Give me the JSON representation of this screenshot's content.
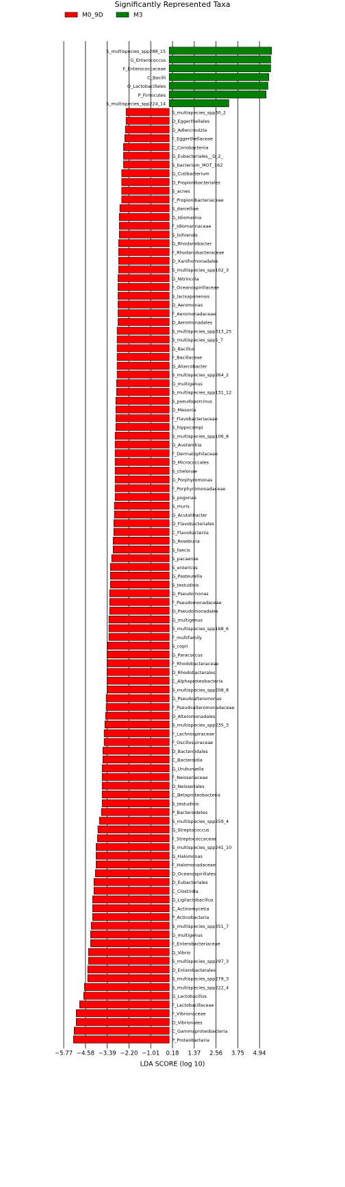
{
  "chart_data": {
    "type": "bar",
    "orientation": "horizontal",
    "title": "Significantly Represented Taxa",
    "x_label": "LDA SCORE (log 10)",
    "categories": [
      "S_multispecies_spp288_15",
      "G_Enterococcus",
      "F_Enterococcaceae",
      "C_Bacilli",
      "O_Lactobacillales",
      "P_Firmicutes",
      "S_multispecies_spp224_14",
      "S_multispecies_spp30_2",
      "O_Eggerthellales",
      "G_Adlercreutzia",
      "F_Eggerthellaceae",
      "C_Coriobacteriia",
      "G_Eubacteriales__G_2_",
      "S_bacterium_MOT_162",
      "G_Cutibacterium",
      "O_Propionibacteriales",
      "S_acnes",
      "F_Propionibacteriaceae",
      "S_danielliae",
      "G_Idiomarina",
      "F_Idiomarinaceae",
      "S_loihiensis",
      "G_Rhodanobacter",
      "F_Rhodanobacteraceae",
      "O_Xanthomonadales",
      "S_multispecies_spp102_3",
      "G_Nitrincola",
      "F_Oceanospirillaceae",
      "S_lacisaponensis",
      "G_Aeromonas",
      "F_Aeromonadaceae",
      "O_Aeromonadales",
      "S_multispecies_spp313_25",
      "S_multispecies_spp5_7",
      "G_Bacillus",
      "F_Bacillaceae",
      "G_Aliarcobacter",
      "S_multispecies_spp264_2",
      "G_multigenus",
      "S_multispecies_spp131_12",
      "S_pseudoporcinus",
      "G_Mesonia",
      "F_Flavobacteriaceae",
      "S_hippocampi",
      "S_multispecies_spp106_8",
      "G_Austwickia",
      "F_Dermatophilaceae",
      "O_Micrococcales",
      "S_chelonae",
      "G_Porphyromonas",
      "F_Porphyromonadaceae",
      "S_pogonae",
      "S_muris",
      "G_Acutalibacter",
      "O_Flavobacteriales",
      "C_Flavobacteriia",
      "G_Roseburia",
      "S_faecis",
      "S_pacaense",
      "S_entericus",
      "G_Pasteurella",
      "S_testudinis",
      "G_Pseudomonas",
      "F_Pseudomonadaceae",
      "O_Pseudomonadales",
      "G_multigenus",
      "S_multispecies_spp168_6",
      "F_multifamily",
      "S_copri",
      "G_Paracoccus",
      "F_Rhodobacteraceae",
      "O_Rhodobacterales",
      "C_Alphaproteobacteria",
      "S_multispecies_spp208_8",
      "G_Pseudoalteromonas",
      "F_Pseudoalteromonadaceae",
      "O_Alteromonadales",
      "S_multispecies_spp235_3",
      "F_Lachnospiraceae",
      "F_Oscillospiraceae",
      "O_Bacteroidales",
      "C_Bacteroidia",
      "G_Uruburuella",
      "F_Neisseriaceae",
      "O_Neisseriales",
      "C_Betaproteobacteria",
      "S_testudinis",
      "P_Bacteroidetes",
      "S_multispecies_spp259_4",
      "G_Streptococcus",
      "F_Streptococcaceae",
      "S_multispecies_spp241_10",
      "G_Halomonas",
      "F_Halomonadaceae",
      "O_Oceanospirillales",
      "O_Eubacteriales",
      "C_Clostridia",
      "G_Ligilactobacillus",
      "C_Actinomycetia",
      "P_Actinobacteria",
      "S_multispecies_spp351_7",
      "G_multigenus",
      "F_Enterobacteriaceae",
      "G_Vibrio",
      "S_multispecies_spp297_3",
      "O_Enterobacterales",
      "S_multispecies_spp279_3",
      "S_multispecies_spp222_4",
      "G_Lactobacillus",
      "F_Lactobacillaceae",
      "F_Vibrionaceae",
      "O_Vibrionales",
      "C_Gammaproteobacteria",
      "P_Proteobacteria"
    ],
    "series": [
      {
        "name": "M0_9D",
        "color": "#ff0000",
        "values": [
          null,
          null,
          null,
          null,
          null,
          null,
          null,
          -2.36,
          -2.36,
          -2.4,
          -2.43,
          -2.5,
          -2.5,
          -2.5,
          -2.6,
          -2.6,
          -2.6,
          -2.6,
          -2.7,
          -2.73,
          -2.73,
          -2.73,
          -2.77,
          -2.77,
          -2.77,
          -2.77,
          -2.8,
          -2.8,
          -2.8,
          -2.8,
          -2.8,
          -2.8,
          -2.85,
          -2.85,
          -2.85,
          -2.85,
          -2.85,
          -2.85,
          -2.88,
          -2.88,
          -2.92,
          -2.92,
          -2.92,
          -2.92,
          -2.96,
          -2.96,
          -2.96,
          -2.96,
          -2.96,
          -2.96,
          -2.96,
          -2.96,
          -3.0,
          -3.0,
          -3.03,
          -3.03,
          -3.07,
          -3.07,
          -3.15,
          -3.22,
          -3.22,
          -3.22,
          -3.26,
          -3.26,
          -3.26,
          -3.3,
          -3.3,
          -3.3,
          -3.37,
          -3.4,
          -3.4,
          -3.4,
          -3.4,
          -3.4,
          -3.45,
          -3.45,
          -3.48,
          -3.52,
          -3.56,
          -3.56,
          -3.63,
          -3.63,
          -3.67,
          -3.67,
          -3.67,
          -3.67,
          -3.67,
          -3.71,
          -3.82,
          -3.9,
          -3.93,
          -4.0,
          -4.0,
          -4.0,
          -4.04,
          -4.12,
          -4.12,
          -4.19,
          -4.19,
          -4.19,
          -4.27,
          -4.3,
          -4.3,
          -4.42,
          -4.42,
          -4.46,
          -4.46,
          -4.64,
          -4.68,
          -4.9,
          -5.09,
          -5.09,
          -5.2,
          -5.24
        ]
      },
      {
        "name": "M3",
        "color": "#008000",
        "values": [
          5.6,
          5.55,
          5.55,
          5.45,
          5.4,
          5.3,
          3.26,
          null,
          null,
          null,
          null,
          null,
          null,
          null,
          null,
          null,
          null,
          null,
          null,
          null,
          null,
          null,
          null,
          null,
          null,
          null,
          null,
          null,
          null,
          null,
          null,
          null,
          null,
          null,
          null,
          null,
          null,
          null,
          null,
          null,
          null,
          null,
          null,
          null,
          null,
          null,
          null,
          null,
          null,
          null,
          null,
          null,
          null,
          null,
          null,
          null,
          null,
          null,
          null,
          null,
          null,
          null,
          null,
          null,
          null,
          null,
          null,
          null,
          null,
          null,
          null,
          null,
          null,
          null,
          null,
          null,
          null,
          null,
          null,
          null,
          null,
          null,
          null,
          null,
          null,
          null,
          null,
          null,
          null,
          null,
          null,
          null,
          null,
          null,
          null,
          null,
          null,
          null,
          null,
          null,
          null,
          null,
          null,
          null,
          null,
          null,
          null,
          null,
          null,
          null,
          null,
          null,
          null,
          null
        ]
      }
    ],
    "xlim": [
      -6.26,
      6.47
    ],
    "xticks": [
      {
        "value": -5.77,
        "label": "−5.77"
      },
      {
        "value": -4.58,
        "label": "−4.58"
      },
      {
        "value": -3.39,
        "label": "−3.39"
      },
      {
        "value": -2.2,
        "label": "−2.20"
      },
      {
        "value": -1.01,
        "label": "−1.01"
      },
      0.18,
      1.37,
      2.56,
      3.75,
      4.94
    ],
    "grid": true,
    "legend_position": "top-left"
  }
}
